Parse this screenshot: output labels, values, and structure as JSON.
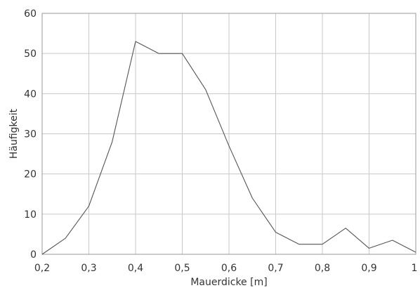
{
  "chart_data": {
    "type": "line",
    "xlabel": "Mauerdicke [m]",
    "ylabel": "Häufigkeit",
    "xlim": [
      0.2,
      1.0
    ],
    "ylim": [
      0,
      60
    ],
    "grid": true,
    "x_ticks": [
      "0,2",
      "0,3",
      "0,4",
      "0,5",
      "0,6",
      "0,7",
      "0,8",
      "0,9",
      "1"
    ],
    "y_ticks": [
      "0",
      "10",
      "20",
      "30",
      "40",
      "50",
      "60"
    ],
    "x_tick_values": [
      0.2,
      0.3,
      0.4,
      0.5,
      0.6,
      0.7,
      0.8,
      0.9,
      1.0
    ],
    "y_tick_values": [
      0,
      10,
      20,
      30,
      40,
      50,
      60
    ],
    "series": [
      {
        "color": "#555555",
        "x": [
          0.2,
          0.25,
          0.3,
          0.35,
          0.4,
          0.45,
          0.5,
          0.55,
          0.6,
          0.65,
          0.7,
          0.75,
          0.8,
          0.85,
          0.9,
          0.95,
          1.0
        ],
        "y": [
          0,
          4,
          12,
          28,
          53,
          50,
          50,
          41,
          27,
          14,
          5.5,
          2.5,
          2.5,
          6.5,
          1.5,
          3.5,
          0.5
        ]
      }
    ]
  }
}
